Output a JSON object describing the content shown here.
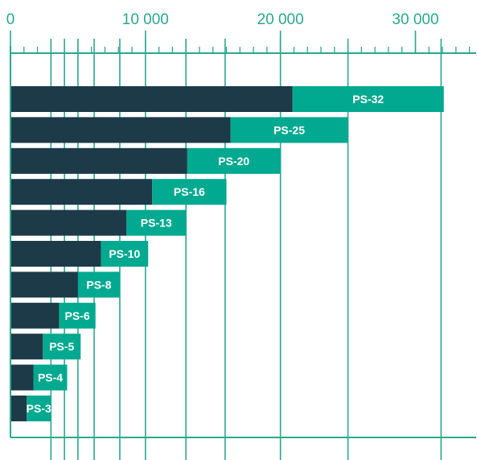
{
  "chart_data": {
    "type": "bar",
    "orientation": "horizontal",
    "stacked": true,
    "categories": [
      "PS-32",
      "PS-25",
      "PS-20",
      "PS-16",
      "PS-13",
      "PS-10",
      "PS-8",
      "PS-6",
      "PS-5",
      "PS-4",
      "PS-3"
    ],
    "series": [
      {
        "values": [
          20900,
          16300,
          13100,
          10500,
          8600,
          6700,
          5000,
          3600,
          2400,
          1700,
          1200
        ]
      },
      {
        "values": [
          11200,
          8700,
          6900,
          5500,
          4400,
          3500,
          3100,
          2700,
          2800,
          2500,
          1800
        ]
      }
    ],
    "xlim": [
      0,
      34500
    ],
    "x_ticks": [
      0,
      10000,
      20000,
      30000
    ],
    "x_tick_labels": [
      "0",
      "10 000",
      "20 000",
      "30 000"
    ],
    "minor_tick_step": 1000,
    "reference_lines": [
      3000,
      4000,
      5000,
      6200,
      8100,
      10000,
      13000,
      15900,
      20000,
      25000,
      31900
    ],
    "title": "",
    "xlabel": "",
    "ylabel": "",
    "grid": true,
    "colors": {
      "series_dark": "#1d3a48",
      "series_light": "#00a98f",
      "axis": "#2aa88f",
      "bar_label": "#ffffff",
      "tick_label": "#2aa88f"
    }
  }
}
